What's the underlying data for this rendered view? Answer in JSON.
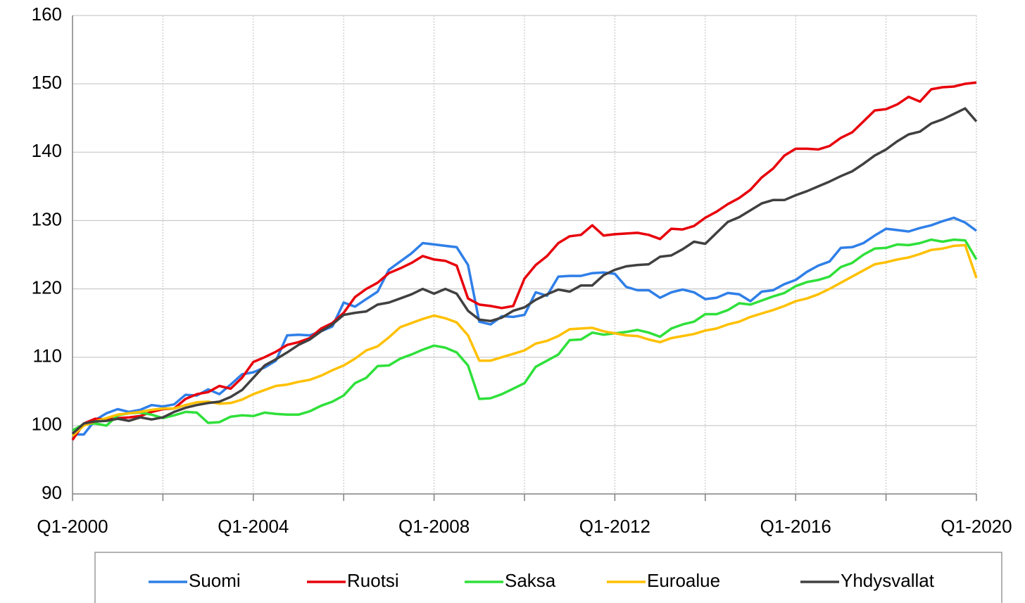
{
  "chart_data": {
    "type": "line",
    "categories": [
      "Q1-2000",
      null,
      null,
      null,
      null,
      null,
      null,
      null,
      null,
      null,
      null,
      null,
      null,
      null,
      null,
      null,
      "Q1-2004",
      null,
      null,
      null,
      null,
      null,
      null,
      null,
      null,
      null,
      null,
      null,
      null,
      null,
      null,
      null,
      "Q1-2008",
      null,
      null,
      null,
      null,
      null,
      null,
      null,
      null,
      null,
      null,
      null,
      null,
      null,
      null,
      null,
      "Q1-2012",
      null,
      null,
      null,
      null,
      null,
      null,
      null,
      null,
      null,
      null,
      null,
      null,
      null,
      null,
      null,
      "Q1-2016",
      null,
      null,
      null,
      null,
      null,
      null,
      null,
      null,
      null,
      null,
      null,
      null,
      null,
      null,
      null,
      "Q1-2020"
    ],
    "ylim": [
      90,
      160
    ],
    "yticks": [
      90,
      100,
      110,
      120,
      130,
      140,
      150,
      160
    ],
    "grid": true,
    "legend": "bottom",
    "series": [
      {
        "name": "Suomi",
        "color": "#2f7fe8",
        "values": [
          98.7,
          98.7,
          100.8,
          101.8,
          102.4,
          102.0,
          102.3,
          103.0,
          102.8,
          103.1,
          104.5,
          104.4,
          105.3,
          104.6,
          106.0,
          107.5,
          107.8,
          108.5,
          109.5,
          113.2,
          113.3,
          113.2,
          113.8,
          114.5,
          118.0,
          117.4,
          118.5,
          119.6,
          122.8,
          124.0,
          125.2,
          126.7,
          126.5,
          126.3,
          126.1,
          123.5,
          115.2,
          114.8,
          116.0,
          115.9,
          116.2,
          119.5,
          119.0,
          121.8,
          121.9,
          121.9,
          122.3,
          122.4,
          122.2,
          120.3,
          119.8,
          119.8,
          118.7,
          119.5,
          119.9,
          119.5,
          118.5,
          118.7,
          119.4,
          119.2,
          118.2,
          119.6,
          119.8,
          120.7,
          121.3,
          122.5,
          123.4,
          124.0,
          126.0,
          126.1,
          126.7,
          127.8,
          128.8,
          128.6,
          128.4,
          128.9,
          129.3,
          129.9,
          130.4,
          129.7,
          128.5
        ]
      },
      {
        "name": "Ruotsi",
        "color": "#e8000b",
        "values": [
          97.9,
          100.3,
          101.0,
          100.9,
          101.1,
          101.2,
          101.4,
          102.0,
          102.4,
          102.5,
          103.9,
          104.6,
          104.9,
          105.8,
          105.4,
          107.0,
          109.3,
          110.0,
          110.8,
          111.8,
          112.2,
          112.8,
          114.2,
          115.0,
          116.5,
          118.8,
          120.0,
          120.9,
          122.3,
          123.0,
          123.8,
          124.8,
          124.3,
          124.1,
          123.4,
          118.6,
          117.7,
          117.5,
          117.2,
          117.5,
          121.5,
          123.5,
          124.8,
          126.7,
          127.7,
          127.9,
          129.3,
          127.8,
          128.0,
          128.1,
          128.2,
          127.9,
          127.3,
          128.8,
          128.7,
          129.2,
          130.4,
          131.3,
          132.4,
          133.3,
          134.5,
          136.3,
          137.6,
          139.5,
          140.5,
          140.5,
          140.4,
          140.9,
          142.1,
          142.9,
          144.5,
          146.1,
          146.3,
          147.0,
          148.1,
          147.4,
          149.2,
          149.5,
          149.6,
          150.0,
          150.2
        ]
      },
      {
        "name": "Saksa",
        "color": "#2fe03a",
        "values": [
          99.3,
          100.2,
          100.3,
          100.0,
          101.5,
          101.8,
          101.9,
          101.6,
          101.1,
          101.5,
          102.0,
          101.9,
          100.4,
          100.5,
          101.3,
          101.5,
          101.4,
          101.9,
          101.7,
          101.6,
          101.6,
          102.1,
          102.9,
          103.5,
          104.4,
          106.2,
          107.0,
          108.7,
          108.8,
          109.8,
          110.4,
          111.1,
          111.7,
          111.4,
          110.7,
          108.8,
          103.9,
          104.0,
          104.6,
          105.4,
          106.2,
          108.6,
          109.5,
          110.4,
          112.5,
          112.6,
          113.6,
          113.3,
          113.5,
          113.7,
          114.0,
          113.6,
          113.0,
          114.2,
          114.8,
          115.2,
          116.3,
          116.3,
          116.9,
          117.9,
          117.7,
          118.3,
          118.9,
          119.4,
          120.4,
          121.0,
          121.3,
          121.8,
          123.2,
          123.8,
          125.0,
          125.9,
          126.0,
          126.5,
          126.4,
          126.7,
          127.2,
          126.9,
          127.2,
          127.1,
          124.3
        ]
      },
      {
        "name": "Euroalue",
        "color": "#ffc000",
        "values": [
          98.5,
          100.0,
          100.6,
          101.1,
          101.6,
          101.8,
          102.0,
          102.3,
          102.5,
          102.5,
          103.0,
          103.4,
          103.5,
          103.2,
          103.3,
          103.8,
          104.6,
          105.2,
          105.8,
          106.0,
          106.4,
          106.7,
          107.3,
          108.1,
          108.8,
          109.8,
          111.0,
          111.6,
          112.9,
          114.4,
          115.0,
          115.6,
          116.1,
          115.7,
          115.1,
          113.2,
          109.5,
          109.5,
          110.0,
          110.5,
          111.0,
          112.0,
          112.4,
          113.1,
          114.1,
          114.2,
          114.3,
          113.8,
          113.5,
          113.2,
          113.1,
          112.6,
          112.2,
          112.8,
          113.1,
          113.4,
          113.9,
          114.2,
          114.8,
          115.2,
          115.9,
          116.4,
          116.9,
          117.5,
          118.2,
          118.6,
          119.2,
          120.0,
          120.9,
          121.8,
          122.7,
          123.6,
          123.9,
          124.3,
          124.6,
          125.1,
          125.7,
          125.9,
          126.3,
          126.4,
          121.6
        ]
      },
      {
        "name": "Yhdysvallat",
        "color": "#404040",
        "values": [
          98.8,
          100.3,
          100.6,
          100.7,
          101.0,
          100.7,
          101.2,
          100.9,
          101.2,
          102.0,
          102.6,
          103.0,
          103.3,
          103.5,
          104.2,
          105.2,
          107.0,
          108.8,
          109.7,
          110.7,
          111.8,
          112.6,
          113.8,
          114.8,
          116.2,
          116.5,
          116.7,
          117.7,
          118.0,
          118.6,
          119.2,
          120.0,
          119.3,
          120.0,
          119.3,
          116.8,
          115.5,
          115.3,
          115.8,
          116.8,
          117.3,
          118.4,
          119.2,
          119.9,
          119.6,
          120.5,
          120.5,
          122.0,
          122.8,
          123.3,
          123.5,
          123.6,
          124.7,
          124.9,
          125.8,
          126.9,
          126.6,
          128.2,
          129.8,
          130.5,
          131.5,
          132.5,
          133.0,
          133.0,
          133.7,
          134.3,
          135.0,
          135.7,
          136.5,
          137.2,
          138.3,
          139.5,
          140.4,
          141.6,
          142.6,
          143.0,
          144.2,
          144.8,
          145.6,
          146.4,
          144.5
        ]
      }
    ]
  }
}
